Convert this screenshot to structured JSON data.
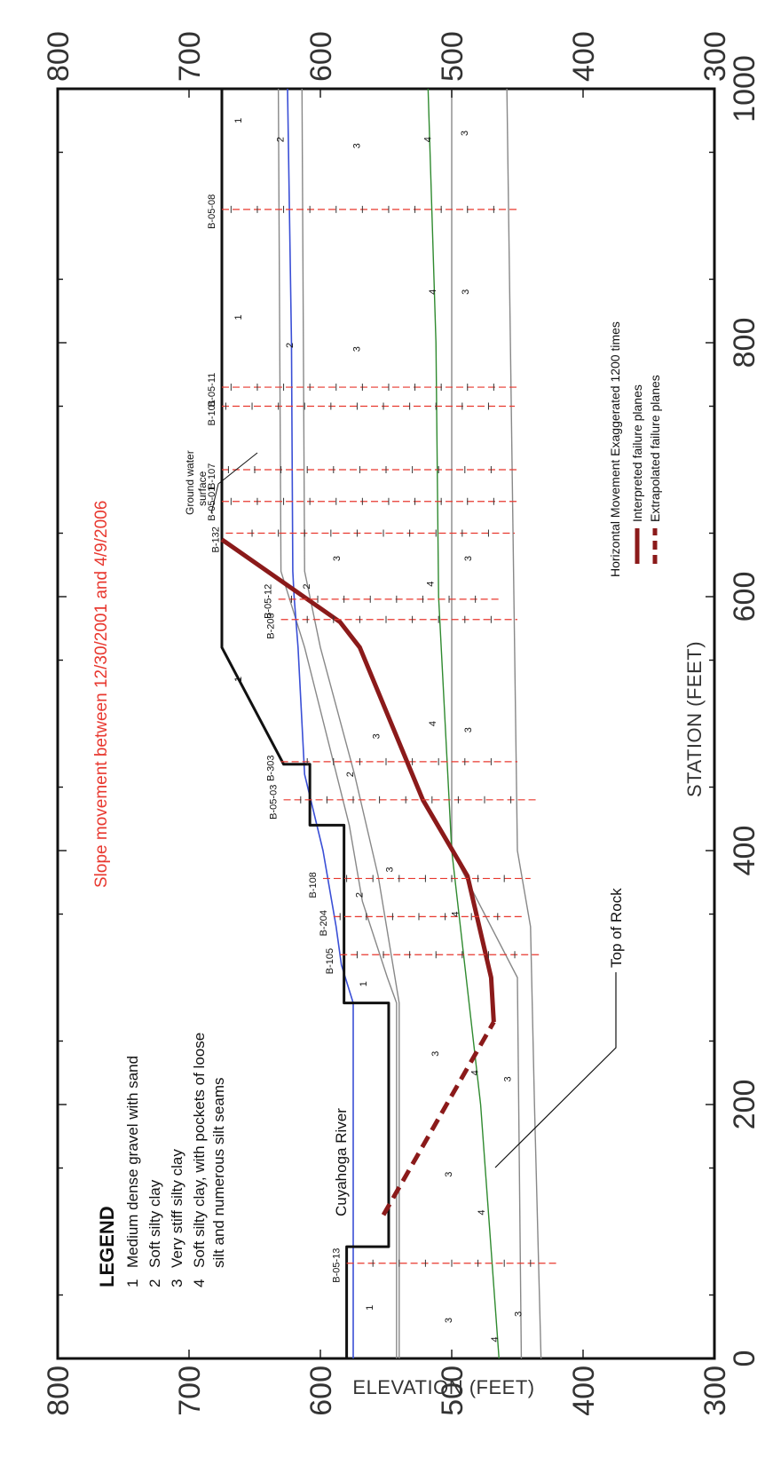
{
  "title": "Slope movement between 12/30/2001 and 4/9/2006",
  "axes": {
    "x_label": "STATION (FEET)",
    "y_label": "ELEVATION (FEET)",
    "x_ticks": [
      "0",
      "200",
      "400",
      "600",
      "800",
      "1000"
    ],
    "y_ticks": [
      "300",
      "400",
      "500",
      "600",
      "700",
      "800"
    ],
    "x_range": [
      0,
      1000
    ],
    "y_range": [
      300,
      800
    ]
  },
  "legend": {
    "title": "LEGEND",
    "items": [
      {
        "num": "1",
        "lines": [
          "Medium dense gravel with sand"
        ]
      },
      {
        "num": "2",
        "lines": [
          "Soft silty clay"
        ]
      },
      {
        "num": "3",
        "lines": [
          "Very stiff silty clay"
        ]
      },
      {
        "num": "4",
        "lines": [
          "Soft silty clay, with pockets of loose",
          "silt and numerous silt seams"
        ]
      }
    ]
  },
  "key": {
    "exaggeration": "Horizontal Movement Exaggerated 1200 times",
    "interpreted": "Interpreted failure planes",
    "extrapolated": "Extrapolated failure planes"
  },
  "annotations": {
    "river": "Cuyahoga River",
    "rock": "Top of Rock",
    "groundwater_line1": "Ground water",
    "groundwater_line2": "surface"
  },
  "colors": {
    "ground_surface": "#111111",
    "groundwater": "#3a4fd6",
    "layer_4_boundary": "#2f8a2f",
    "layer_boundary": "#888888",
    "boring": "#e8382f",
    "failure_plane": "#8b1a1a",
    "title": "#e8382f"
  },
  "chart_data": {
    "type": "line",
    "x_unit": "ft (station)",
    "y_unit": "ft (elevation)",
    "ground_surface": {
      "x": [
        0,
        88,
        88,
        280,
        280,
        420,
        420,
        468,
        468,
        560,
        1000
      ],
      "y": [
        580,
        580,
        548,
        548,
        582,
        582,
        608,
        608,
        628,
        675,
        675
      ]
    },
    "groundwater": {
      "x": [
        0,
        280,
        310,
        340,
        400,
        460,
        560,
        600,
        620,
        800,
        1000
      ],
      "y": [
        575,
        575,
        584,
        588,
        598,
        612,
        617,
        620,
        621,
        622,
        625
      ]
    },
    "boundary_1_2": {
      "x": [
        0,
        280,
        300,
        360,
        420,
        560,
        620,
        1000
      ],
      "y": [
        542,
        542,
        549,
        568,
        578,
        612,
        630,
        632
      ]
    },
    "boundary_2_3": {
      "x": [
        0,
        280,
        380,
        460,
        560,
        620,
        1000
      ],
      "y": [
        540,
        540,
        556,
        574,
        600,
        612,
        614
      ]
    },
    "boundary_3_4_green": {
      "x": [
        0,
        200,
        400,
        600,
        800,
        1000
      ],
      "y": [
        464,
        478,
        500,
        510,
        512,
        518
      ]
    },
    "boundary_4_3_lower": {
      "x": [
        0,
        300,
        400,
        1000
      ],
      "y": [
        447,
        450,
        500,
        500
      ]
    },
    "top_of_rock": {
      "x": [
        0,
        200,
        340,
        400,
        1000
      ],
      "y": [
        432,
        437,
        440,
        450,
        458
      ]
    },
    "interpreted_failure_plane": {
      "x": [
        265,
        300,
        380,
        440,
        560,
        580,
        645
      ],
      "y": [
        468,
        470,
        488,
        522,
        570,
        585,
        675
      ]
    },
    "extrapolated_failure_plane": {
      "x": [
        113,
        265
      ],
      "y": [
        552,
        468
      ]
    },
    "borings": [
      {
        "name": "B-05-13",
        "x": 75,
        "top": 580,
        "bottom": 420
      },
      {
        "name": "B-105",
        "x": 318,
        "top": 585,
        "bottom": 432
      },
      {
        "name": "B-204",
        "x": 348,
        "top": 590,
        "bottom": 445
      },
      {
        "name": "B-108",
        "x": 378,
        "top": 598,
        "bottom": 440
      },
      {
        "name": "B-05-03",
        "x": 440,
        "top": 628,
        "bottom": 435
      },
      {
        "name": "B-303",
        "x": 470,
        "top": 630,
        "bottom": 450
      },
      {
        "name": "B-203",
        "x": 582,
        "top": 630,
        "bottom": 450
      },
      {
        "name": "B-05-12",
        "x": 598,
        "top": 632,
        "bottom": 462
      },
      {
        "name": "B-132",
        "x": 650,
        "top": 672,
        "bottom": 452
      },
      {
        "name": "B-05-01",
        "x": 675,
        "top": 675,
        "bottom": 448
      },
      {
        "name": "B-107",
        "x": 700,
        "top": 675,
        "bottom": 450
      },
      {
        "name": "B-101",
        "x": 750,
        "top": 675,
        "bottom": 452
      },
      {
        "name": "B-05-11",
        "x": 765,
        "top": 675,
        "bottom": 448
      },
      {
        "name": "B-05-08",
        "x": 905,
        "top": 675,
        "bottom": 448
      }
    ],
    "soil_numbers": [
      {
        "label": "1",
        "x": 40,
        "y": 560
      },
      {
        "label": "3",
        "x": 30,
        "y": 500
      },
      {
        "label": "4",
        "x": 15,
        "y": 465
      },
      {
        "label": "3",
        "x": 35,
        "y": 447
      },
      {
        "label": "4",
        "x": 115,
        "y": 475
      },
      {
        "label": "3",
        "x": 145,
        "y": 500
      },
      {
        "label": "3",
        "x": 240,
        "y": 510
      },
      {
        "label": "4",
        "x": 225,
        "y": 480
      },
      {
        "label": "3",
        "x": 220,
        "y": 455
      },
      {
        "label": "1",
        "x": 295,
        "y": 565
      },
      {
        "label": "2",
        "x": 365,
        "y": 568
      },
      {
        "label": "3",
        "x": 385,
        "y": 545
      },
      {
        "label": "4",
        "x": 350,
        "y": 495
      },
      {
        "label": "2",
        "x": 460,
        "y": 575
      },
      {
        "label": "3",
        "x": 490,
        "y": 555
      },
      {
        "label": "4",
        "x": 500,
        "y": 512
      },
      {
        "label": "3",
        "x": 495,
        "y": 485
      },
      {
        "label": "1",
        "x": 535,
        "y": 660
      },
      {
        "label": "2",
        "x": 608,
        "y": 608
      },
      {
        "label": "3",
        "x": 630,
        "y": 585
      },
      {
        "label": "4",
        "x": 610,
        "y": 514
      },
      {
        "label": "3",
        "x": 630,
        "y": 485
      },
      {
        "label": "1",
        "x": 820,
        "y": 660
      },
      {
        "label": "2",
        "x": 798,
        "y": 621
      },
      {
        "label": "3",
        "x": 795,
        "y": 570
      },
      {
        "label": "4",
        "x": 840,
        "y": 512
      },
      {
        "label": "3",
        "x": 840,
        "y": 487
      },
      {
        "label": "1",
        "x": 975,
        "y": 660
      },
      {
        "label": "2",
        "x": 960,
        "y": 628
      },
      {
        "label": "3",
        "x": 955,
        "y": 570
      },
      {
        "label": "4",
        "x": 960,
        "y": 516
      },
      {
        "label": "3",
        "x": 965,
        "y": 488
      }
    ]
  }
}
